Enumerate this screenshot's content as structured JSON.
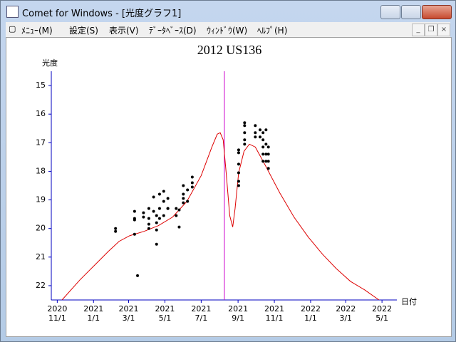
{
  "window": {
    "title": "Comet for Windows - [光度グラフ1]"
  },
  "menu": [
    "ﾒﾆｭｰ(M)",
    "設定(S)",
    "表示(V)",
    "ﾃﾞｰﾀﾍﾞｰｽ(D)",
    "ｳｨﾝﾄﾞｳ(W)",
    "ﾍﾙﾌﾟ(H)"
  ],
  "chart_data": {
    "type": "combo",
    "title": "2012 US136",
    "y_label": "光度",
    "x_label": "日付",
    "ylim": [
      22.5,
      14.5
    ],
    "yticks": [
      15,
      16,
      17,
      18,
      19,
      20,
      21,
      22
    ],
    "xlim": [
      "2020-10-22",
      "2022-05-26"
    ],
    "xticks": [
      {
        "value": "2020-11-01",
        "label": "2020\n11/1"
      },
      {
        "value": "2021-01-01",
        "label": "2021\n1/1"
      },
      {
        "value": "2021-03-01",
        "label": "2021\n3/1"
      },
      {
        "value": "2021-05-01",
        "label": "2021\n5/1"
      },
      {
        "value": "2021-07-01",
        "label": "2021\n7/1"
      },
      {
        "value": "2021-09-01",
        "label": "2021\n9/1"
      },
      {
        "value": "2021-11-01",
        "label": "2021\n11/1"
      },
      {
        "value": "2022-01-01",
        "label": "2022\n1/1"
      },
      {
        "value": "2022-03-01",
        "label": "2022\n3/1"
      },
      {
        "value": "2022-05-01",
        "label": "2022\n5/1"
      }
    ],
    "axis_color": "#0000c0",
    "vline": {
      "x": "2021-08-09",
      "color": "#cc00cc"
    },
    "series": [
      {
        "type": "line",
        "color": "#dd0000",
        "x": [
          "2020-11-09",
          "2020-12-09",
          "2021-01-02",
          "2021-01-26",
          "2021-02-13",
          "2021-03-03",
          "2021-03-27",
          "2021-04-20",
          "2021-05-14",
          "2021-06-07",
          "2021-07-01",
          "2021-07-19",
          "2021-07-28",
          "2021-08-02",
          "2021-08-07",
          "2021-08-12",
          "2021-08-18",
          "2021-08-23",
          "2021-08-27",
          "2021-09-02",
          "2021-09-11",
          "2021-09-20",
          "2021-09-30",
          "2021-10-17",
          "2021-11-10",
          "2021-12-04",
          "2021-12-28",
          "2022-01-21",
          "2022-02-13",
          "2022-03-09",
          "2022-04-02",
          "2022-04-26"
        ],
        "values": [
          22.5,
          21.8,
          21.3,
          20.8,
          20.45,
          20.25,
          20.1,
          19.9,
          19.6,
          19.05,
          18.15,
          17.15,
          16.7,
          16.65,
          16.9,
          18.05,
          19.55,
          19.95,
          19.3,
          18.05,
          17.3,
          17.05,
          17.15,
          17.8,
          18.75,
          19.6,
          20.3,
          20.9,
          21.4,
          21.85,
          22.15,
          22.5
        ]
      },
      {
        "type": "scatter",
        "color": "#000000",
        "x": [
          "2021-02-07",
          "2021-02-07",
          "2021-03-11",
          "2021-03-11",
          "2021-03-11",
          "2021-03-11",
          "2021-03-16",
          "2021-03-26",
          "2021-03-26",
          "2021-04-04",
          "2021-04-04",
          "2021-04-04",
          "2021-04-04",
          "2021-04-12",
          "2021-04-12",
          "2021-04-17",
          "2021-04-17",
          "2021-04-17",
          "2021-04-17",
          "2021-04-22",
          "2021-04-22",
          "2021-04-22",
          "2021-04-29",
          "2021-04-29",
          "2021-04-29",
          "2021-05-06",
          "2021-05-06",
          "2021-05-06",
          "2021-05-20",
          "2021-05-20",
          "2021-05-25",
          "2021-05-25",
          "2021-06-01",
          "2021-06-01",
          "2021-06-01",
          "2021-06-01",
          "2021-06-08",
          "2021-06-08",
          "2021-06-16",
          "2021-06-16",
          "2021-06-16",
          "2021-09-02",
          "2021-09-02",
          "2021-09-02",
          "2021-09-02",
          "2021-09-02",
          "2021-09-02",
          "2021-09-12",
          "2021-09-12",
          "2021-09-12",
          "2021-09-12",
          "2021-09-12",
          "2021-09-30",
          "2021-09-30",
          "2021-09-30",
          "2021-10-08",
          "2021-10-08",
          "2021-10-13",
          "2021-10-13",
          "2021-10-13",
          "2021-10-13",
          "2021-10-13",
          "2021-10-18",
          "2021-10-18",
          "2021-10-18",
          "2021-10-18",
          "2021-10-22",
          "2021-10-22",
          "2021-10-22",
          "2021-10-22"
        ],
        "values": [
          20.0,
          20.1,
          19.4,
          19.7,
          19.65,
          20.2,
          21.65,
          19.45,
          19.6,
          19.3,
          19.65,
          19.85,
          20.0,
          18.9,
          19.4,
          19.55,
          19.8,
          20.05,
          20.55,
          18.8,
          19.3,
          19.65,
          18.7,
          19.05,
          19.55,
          19.3,
          18.95,
          19.3,
          19.3,
          19.55,
          19.35,
          19.95,
          18.5,
          18.8,
          19.1,
          18.95,
          18.65,
          19.05,
          18.2,
          18.4,
          18.55,
          17.75,
          18.05,
          18.35,
          18.5,
          17.25,
          17.35,
          16.4,
          16.65,
          16.3,
          17.05,
          16.9,
          16.4,
          16.65,
          16.8,
          16.55,
          16.8,
          16.65,
          16.9,
          17.15,
          17.4,
          17.65,
          16.55,
          17.05,
          17.4,
          17.65,
          17.15,
          17.4,
          17.65,
          17.9
        ]
      }
    ]
  }
}
